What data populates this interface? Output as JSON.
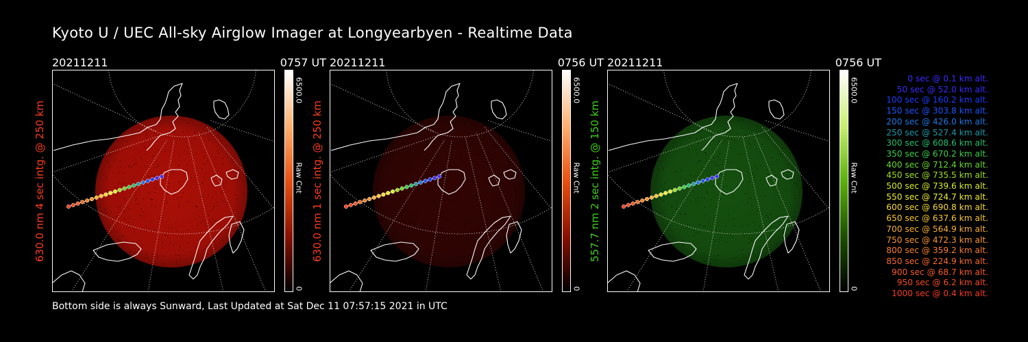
{
  "title": "Kyoto U / UEC All-sky Airglow Imager at Longyearbyen - Realtime Data",
  "footer": "Bottom side is always Sunward, Last Updated at Sat Dec 11 07:57:15 2021 in UTC",
  "panels": [
    {
      "date": "20211211",
      "time": "0757 UT",
      "ylabel": "630.0 nm 4 sec intg. @ 250 km",
      "label_color": "#ff3b1f",
      "glow_color": "#c81208",
      "glow_opacity": 0.85,
      "cbar_max": "6500.0",
      "cbar_unit": "Raw Cnt",
      "cbar_min": "0",
      "cbar_gradient": [
        "#ffffff",
        "#ffb070",
        "#e85010",
        "#8a1000",
        "#000000"
      ]
    },
    {
      "date": "20211211",
      "time": "0756 UT",
      "ylabel": "630.0 nm 1 sec intg. @ 250 km",
      "label_color": "#ff3b1f",
      "glow_color": "#5a0806",
      "glow_opacity": 0.55,
      "cbar_max": "6500.0",
      "cbar_unit": "Raw Cnt",
      "cbar_min": "0",
      "cbar_gradient": [
        "#ffffff",
        "#ffb070",
        "#e85010",
        "#8a1000",
        "#000000"
      ]
    },
    {
      "date": "20211211",
      "time": "0756 UT",
      "ylabel": "557.7 nm 2 sec intg. @ 150 km",
      "label_color": "#3ed21c",
      "glow_color": "#1c6a14",
      "glow_opacity": 0.75,
      "cbar_max": "6500.0",
      "cbar_unit": "Raw Cnt",
      "cbar_min": "0",
      "cbar_gradient": [
        "#ffffff",
        "#c8f070",
        "#5cb010",
        "#1c5000",
        "#000000"
      ]
    }
  ],
  "legend": [
    {
      "text": "0 sec @   0.1 km alt.",
      "color": "#3a2cff"
    },
    {
      "text": "50 sec @  52.0 km alt.",
      "color": "#3a2cff"
    },
    {
      "text": "100 sec @ 160.2 km alt.",
      "color": "#1f3cff"
    },
    {
      "text": "150 sec @ 303.8 km alt.",
      "color": "#1f55ff"
    },
    {
      "text": "200 sec @ 426.0 km alt.",
      "color": "#1e78e6"
    },
    {
      "text": "250 sec @ 527.4 km alt.",
      "color": "#1e9aa8"
    },
    {
      "text": "300 sec @ 608.6 km alt.",
      "color": "#22c070"
    },
    {
      "text": "350 sec @ 670.2 km alt.",
      "color": "#3cd048"
    },
    {
      "text": "400 sec @ 712.4 km alt.",
      "color": "#6ad82c"
    },
    {
      "text": "450 sec @ 735.5 km alt.",
      "color": "#9ee022"
    },
    {
      "text": "500 sec @ 739.6 km alt.",
      "color": "#d8ec2a"
    },
    {
      "text": "550 sec @ 724.7 km alt.",
      "color": "#eeee36"
    },
    {
      "text": "600 sec @ 690.8 km alt.",
      "color": "#f8dc36"
    },
    {
      "text": "650 sec @ 637.6 km alt.",
      "color": "#f8c834"
    },
    {
      "text": "700 sec @ 564.9 km alt.",
      "color": "#f8b030"
    },
    {
      "text": "750 sec @ 472.3 km alt.",
      "color": "#f8982c"
    },
    {
      "text": "800 sec @ 359.2 km alt.",
      "color": "#f88028"
    },
    {
      "text": "850 sec @ 224.9 km alt.",
      "color": "#f86c26"
    },
    {
      "text": "900 sec @  68.7 km alt.",
      "color": "#f85a24"
    },
    {
      "text": "950 sec @   6.2 km alt.",
      "color": "#f84a22"
    },
    {
      "text": "1000 sec @   0.4 km alt.",
      "color": "#f83c20"
    }
  ]
}
